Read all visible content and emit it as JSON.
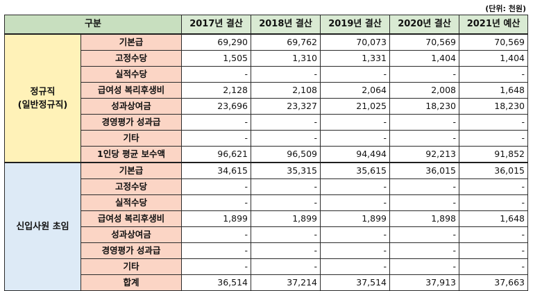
{
  "unit_note": "(단위: 천원)",
  "header": {
    "category": "구분",
    "years": [
      "2017년 결산",
      "2018년 결산",
      "2019년 결산",
      "2020년 결산",
      "2021년 예산"
    ]
  },
  "groups": [
    {
      "name_line1": "정규직",
      "name_line2": "(일반정규직)",
      "rows": [
        {
          "label": "기본급",
          "values": [
            "69,290",
            "69,762",
            "70,073",
            "70,569",
            "70,569"
          ]
        },
        {
          "label": "고정수당",
          "values": [
            "1,505",
            "1,310",
            "1,331",
            "1,404",
            "1,404"
          ]
        },
        {
          "label": "실적수당",
          "values": [
            "-",
            "-",
            "-",
            "-",
            "-"
          ]
        },
        {
          "label": "급여성 복리후생비",
          "values": [
            "2,128",
            "2,108",
            "2,064",
            "2,008",
            "1,648"
          ]
        },
        {
          "label": "성과상여금",
          "values": [
            "23,696",
            "23,327",
            "21,025",
            "18,230",
            "18,230"
          ]
        },
        {
          "label": "경영평가 성과급",
          "values": [
            "-",
            "-",
            "-",
            "-",
            "-"
          ]
        },
        {
          "label": "기타",
          "values": [
            "-",
            "-",
            "-",
            "-",
            "-"
          ]
        },
        {
          "label": "1인당 평균 보수액",
          "values": [
            "96,621",
            "96,509",
            "94,494",
            "92,213",
            "91,852"
          ]
        }
      ]
    },
    {
      "name_line1": "신입사원 초임",
      "name_line2": "",
      "rows": [
        {
          "label": "기본급",
          "values": [
            "34,615",
            "35,315",
            "35,615",
            "36,015",
            "36,015"
          ]
        },
        {
          "label": "고정수당",
          "values": [
            "-",
            "-",
            "-",
            "-",
            "-"
          ]
        },
        {
          "label": "실적수당",
          "values": [
            "-",
            "-",
            "-",
            "-",
            "-"
          ]
        },
        {
          "label": "급여성 복리후생비",
          "values": [
            "1,899",
            "1,899",
            "1,899",
            "1,898",
            "1,648"
          ]
        },
        {
          "label": "성과상여금",
          "values": [
            "-",
            "-",
            "-",
            "-",
            "-"
          ]
        },
        {
          "label": "경영평가 성과급",
          "values": [
            "-",
            "-",
            "-",
            "-",
            "-"
          ]
        },
        {
          "label": "기타",
          "values": [
            "-",
            "-",
            "-",
            "-",
            "-"
          ]
        },
        {
          "label": "합계",
          "values": [
            "36,514",
            "37,214",
            "37,514",
            "37,913",
            "37,663"
          ]
        }
      ]
    }
  ]
}
